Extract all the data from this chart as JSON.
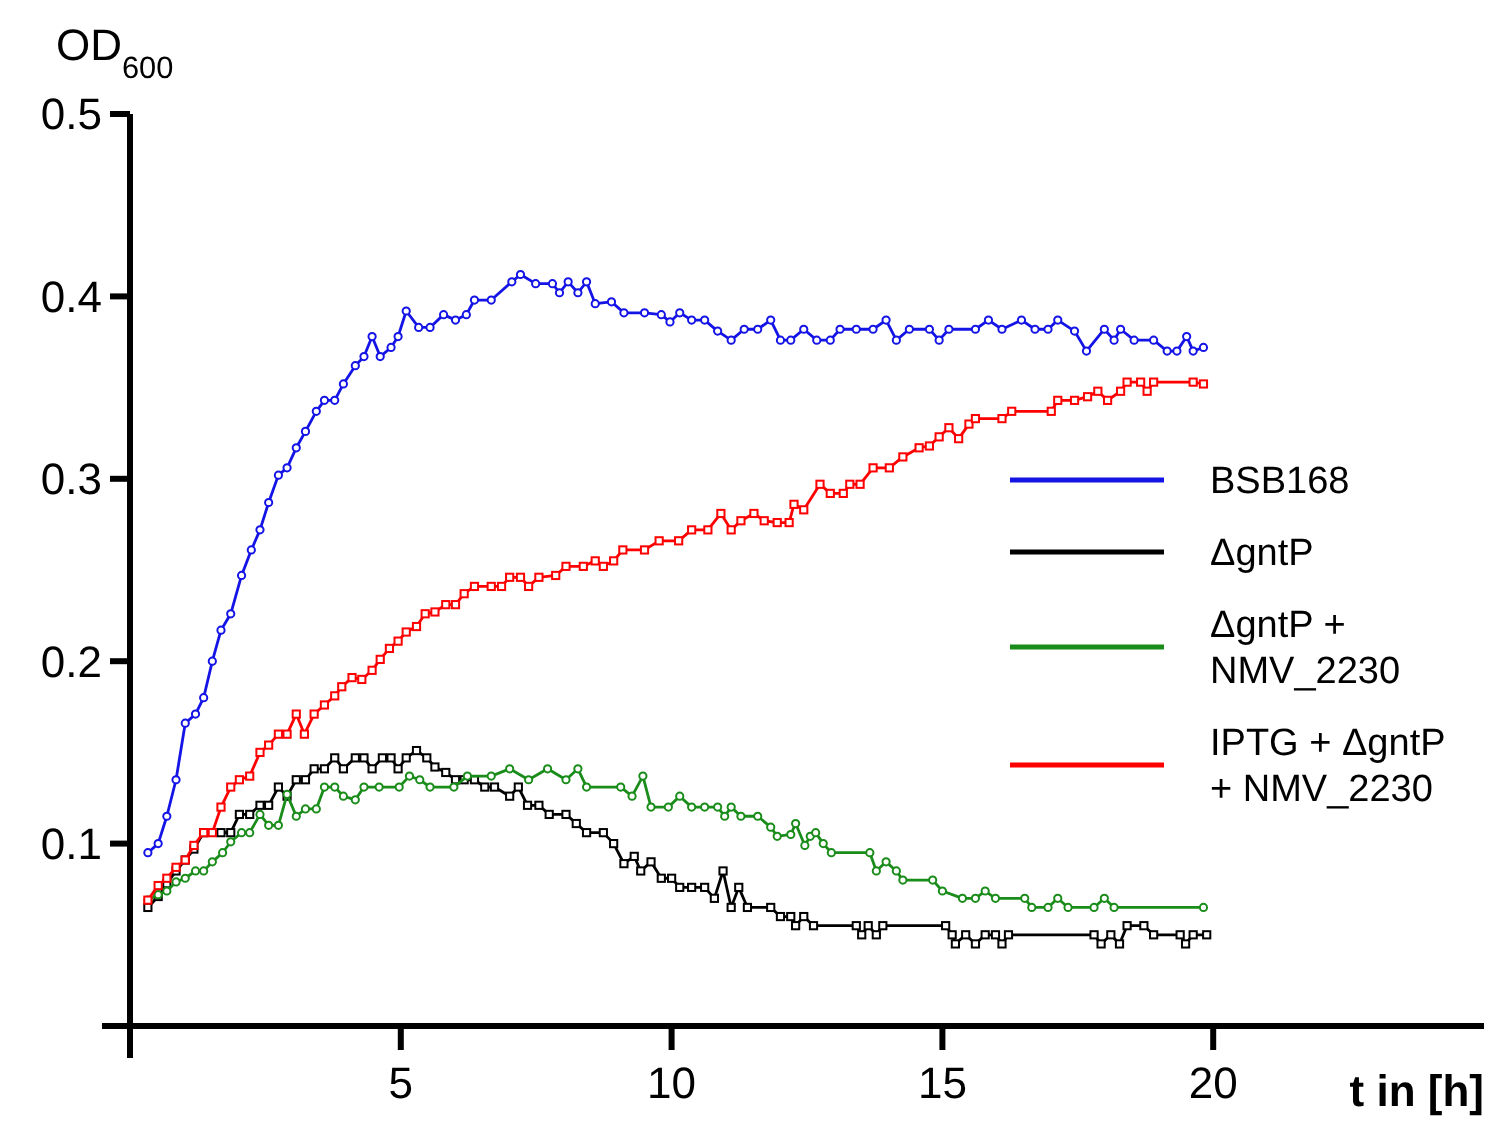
{
  "chart_data": {
    "type": "line",
    "xlabel": "t in [h]",
    "ylabel": "OD$_{600}$",
    "xlim": [
      0,
      25
    ],
    "ylim": [
      0,
      0.5
    ],
    "xticks": [
      5,
      10,
      15,
      20
    ],
    "yticks": [
      0.1,
      0.2,
      0.3,
      0.4,
      0.5
    ],
    "grid": false,
    "legend": "right",
    "line_style": "solid",
    "series": [
      {
        "name": "BSB168",
        "color": "#1414e6",
        "marker": "circle",
        "x": [
          0.33,
          0.52,
          0.68,
          0.85,
          1.02,
          1.21,
          1.36,
          1.52,
          1.68,
          1.86,
          2.06,
          2.24,
          2.4,
          2.56,
          2.74,
          2.9,
          3.07,
          3.24,
          3.44,
          3.59,
          3.78,
          3.94,
          4.16,
          4.32,
          4.47,
          4.62,
          4.82,
          4.95,
          5.1,
          5.33,
          5.54,
          5.79,
          6.01,
          6.21,
          6.36,
          6.67,
          7.05,
          7.21,
          7.49,
          7.8,
          7.93,
          8.09,
          8.27,
          8.43,
          8.59,
          8.89,
          9.12,
          9.5,
          9.81,
          9.97,
          10.15,
          10.37,
          10.61,
          10.85,
          11.1,
          11.34,
          11.59,
          11.83,
          12.01,
          12.2,
          12.44,
          12.68,
          12.93,
          13.11,
          13.41,
          13.72,
          13.96,
          14.15,
          14.39,
          14.76,
          14.94,
          15.12,
          15.61,
          15.85,
          16.1,
          16.46,
          16.71,
          16.95,
          17.13,
          17.44,
          17.66,
          17.99,
          18.17,
          18.29,
          18.54,
          18.9,
          19.15,
          19.33,
          19.51,
          19.63,
          19.82
        ],
        "values": [
          0.095,
          0.1,
          0.115,
          0.135,
          0.166,
          0.171,
          0.18,
          0.2,
          0.217,
          0.226,
          0.247,
          0.261,
          0.272,
          0.287,
          0.302,
          0.306,
          0.317,
          0.326,
          0.337,
          0.343,
          0.343,
          0.352,
          0.362,
          0.367,
          0.378,
          0.367,
          0.372,
          0.378,
          0.392,
          0.383,
          0.383,
          0.39,
          0.387,
          0.39,
          0.398,
          0.398,
          0.408,
          0.412,
          0.407,
          0.407,
          0.402,
          0.408,
          0.402,
          0.408,
          0.396,
          0.397,
          0.391,
          0.391,
          0.39,
          0.386,
          0.391,
          0.387,
          0.387,
          0.381,
          0.376,
          0.382,
          0.382,
          0.387,
          0.376,
          0.376,
          0.382,
          0.376,
          0.376,
          0.382,
          0.382,
          0.382,
          0.387,
          0.376,
          0.382,
          0.382,
          0.376,
          0.382,
          0.382,
          0.387,
          0.382,
          0.387,
          0.382,
          0.382,
          0.387,
          0.381,
          0.37,
          0.382,
          0.376,
          0.382,
          0.376,
          0.376,
          0.37,
          0.37,
          0.378,
          0.37,
          0.372
        ]
      },
      {
        "name": "ΔgntP",
        "color": "#000000",
        "marker": "square",
        "x": [
          0.33,
          0.52,
          0.68,
          0.85,
          1.02,
          1.18,
          1.36,
          1.68,
          1.86,
          2.02,
          2.21,
          2.4,
          2.56,
          2.74,
          2.9,
          3.07,
          3.24,
          3.4,
          3.59,
          3.78,
          3.94,
          4.16,
          4.32,
          4.47,
          4.66,
          4.82,
          4.95,
          5.1,
          5.29,
          5.48,
          5.63,
          5.83,
          6.01,
          6.17,
          6.36,
          6.55,
          6.73,
          7.01,
          7.17,
          7.34,
          7.55,
          7.74,
          8.05,
          8.24,
          8.43,
          8.74,
          8.93,
          9.12,
          9.31,
          9.43,
          9.62,
          9.81,
          10.0,
          10.15,
          10.37,
          10.61,
          10.79,
          10.95,
          11.1,
          11.24,
          11.4,
          11.83,
          12.01,
          12.2,
          12.29,
          12.44,
          12.62,
          13.41,
          13.51,
          13.63,
          13.78,
          13.9,
          15.06,
          15.18,
          15.24,
          15.43,
          15.61,
          15.79,
          15.98,
          16.1,
          16.22,
          17.8,
          17.93,
          18.11,
          18.27,
          18.41,
          18.72,
          18.9,
          19.39,
          19.49,
          19.63,
          19.88
        ],
        "values": [
          0.065,
          0.071,
          0.078,
          0.085,
          0.091,
          0.097,
          0.106,
          0.106,
          0.106,
          0.116,
          0.116,
          0.121,
          0.121,
          0.131,
          0.126,
          0.135,
          0.135,
          0.141,
          0.141,
          0.147,
          0.141,
          0.147,
          0.147,
          0.141,
          0.147,
          0.147,
          0.141,
          0.147,
          0.151,
          0.147,
          0.142,
          0.139,
          0.135,
          0.135,
          0.135,
          0.131,
          0.131,
          0.126,
          0.131,
          0.121,
          0.121,
          0.116,
          0.116,
          0.111,
          0.106,
          0.106,
          0.1,
          0.089,
          0.093,
          0.085,
          0.09,
          0.081,
          0.081,
          0.076,
          0.076,
          0.076,
          0.07,
          0.085,
          0.065,
          0.076,
          0.065,
          0.065,
          0.06,
          0.06,
          0.055,
          0.06,
          0.055,
          0.055,
          0.05,
          0.055,
          0.05,
          0.055,
          0.055,
          0.05,
          0.045,
          0.05,
          0.045,
          0.05,
          0.05,
          0.045,
          0.05,
          0.05,
          0.045,
          0.05,
          0.045,
          0.055,
          0.055,
          0.05,
          0.05,
          0.045,
          0.05,
          0.05
        ]
      },
      {
        "name": "ΔgntP + NMV_2230",
        "color": "#1a8c1a",
        "marker": "circle",
        "x": [
          0.33,
          0.52,
          0.68,
          0.85,
          1.02,
          1.21,
          1.36,
          1.52,
          1.71,
          1.86,
          2.06,
          2.21,
          2.4,
          2.56,
          2.74,
          2.9,
          3.07,
          3.24,
          3.44,
          3.59,
          3.78,
          3.94,
          4.16,
          4.32,
          4.6,
          4.97,
          5.16,
          5.35,
          5.54,
          5.98,
          6.23,
          6.67,
          7.01,
          7.36,
          7.71,
          8.05,
          8.27,
          8.43,
          9.06,
          9.27,
          9.47,
          9.62,
          9.94,
          10.15,
          10.37,
          10.61,
          10.85,
          10.98,
          11.1,
          11.28,
          11.59,
          11.83,
          11.95,
          12.2,
          12.29,
          12.46,
          12.56,
          12.66,
          12.8,
          12.95,
          13.66,
          13.78,
          13.96,
          14.15,
          14.27,
          14.82,
          15.0,
          15.37,
          15.61,
          15.79,
          15.98,
          16.52,
          16.65,
          16.95,
          17.13,
          17.32,
          17.8,
          17.99,
          18.17,
          19.82
        ],
        "values": [
          0.069,
          0.072,
          0.074,
          0.079,
          0.081,
          0.085,
          0.085,
          0.09,
          0.095,
          0.101,
          0.106,
          0.106,
          0.116,
          0.11,
          0.11,
          0.127,
          0.115,
          0.119,
          0.119,
          0.131,
          0.131,
          0.126,
          0.124,
          0.131,
          0.131,
          0.131,
          0.137,
          0.135,
          0.131,
          0.131,
          0.137,
          0.137,
          0.141,
          0.135,
          0.141,
          0.135,
          0.141,
          0.131,
          0.131,
          0.126,
          0.137,
          0.12,
          0.12,
          0.126,
          0.12,
          0.12,
          0.12,
          0.115,
          0.12,
          0.115,
          0.115,
          0.109,
          0.104,
          0.105,
          0.111,
          0.099,
          0.104,
          0.106,
          0.1,
          0.095,
          0.095,
          0.085,
          0.09,
          0.085,
          0.08,
          0.08,
          0.074,
          0.07,
          0.07,
          0.074,
          0.07,
          0.07,
          0.065,
          0.065,
          0.07,
          0.065,
          0.065,
          0.07,
          0.065,
          0.065
        ]
      },
      {
        "name": "IPTG + ΔgntP + NMV_2230",
        "color": "#ff0000",
        "marker": "square",
        "x": [
          0.33,
          0.52,
          0.68,
          0.85,
          1.02,
          1.18,
          1.36,
          1.52,
          1.68,
          1.86,
          2.02,
          2.21,
          2.4,
          2.56,
          2.74,
          2.9,
          3.07,
          3.22,
          3.4,
          3.59,
          3.78,
          3.91,
          4.1,
          4.28,
          4.47,
          4.62,
          4.79,
          4.95,
          5.1,
          5.29,
          5.45,
          5.63,
          5.83,
          6.01,
          6.17,
          6.36,
          6.67,
          6.86,
          7.01,
          7.21,
          7.36,
          7.55,
          7.86,
          8.05,
          8.37,
          8.59,
          8.74,
          8.93,
          9.1,
          9.5,
          9.77,
          10.13,
          10.37,
          10.67,
          10.91,
          11.1,
          11.28,
          11.52,
          11.71,
          11.95,
          12.17,
          12.26,
          12.44,
          12.74,
          12.93,
          13.17,
          13.29,
          13.48,
          13.72,
          14.02,
          14.27,
          14.57,
          14.76,
          14.94,
          15.12,
          15.3,
          15.49,
          15.61,
          16.1,
          16.28,
          17.01,
          17.13,
          17.44,
          17.68,
          17.87,
          18.05,
          18.29,
          18.41,
          18.66,
          18.78,
          18.9,
          19.63,
          19.82
        ],
        "values": [
          0.069,
          0.077,
          0.081,
          0.087,
          0.091,
          0.099,
          0.106,
          0.106,
          0.12,
          0.131,
          0.135,
          0.137,
          0.15,
          0.154,
          0.16,
          0.16,
          0.171,
          0.16,
          0.171,
          0.176,
          0.181,
          0.186,
          0.191,
          0.19,
          0.195,
          0.201,
          0.207,
          0.211,
          0.216,
          0.219,
          0.226,
          0.227,
          0.231,
          0.231,
          0.237,
          0.241,
          0.241,
          0.241,
          0.246,
          0.246,
          0.241,
          0.246,
          0.247,
          0.252,
          0.252,
          0.255,
          0.252,
          0.255,
          0.261,
          0.261,
          0.266,
          0.266,
          0.272,
          0.272,
          0.281,
          0.272,
          0.277,
          0.281,
          0.277,
          0.276,
          0.276,
          0.286,
          0.283,
          0.297,
          0.292,
          0.292,
          0.297,
          0.297,
          0.306,
          0.306,
          0.312,
          0.317,
          0.318,
          0.323,
          0.328,
          0.322,
          0.33,
          0.333,
          0.333,
          0.337,
          0.337,
          0.343,
          0.343,
          0.345,
          0.348,
          0.343,
          0.348,
          0.353,
          0.353,
          0.348,
          0.353,
          0.353,
          0.352
        ]
      }
    ]
  }
}
